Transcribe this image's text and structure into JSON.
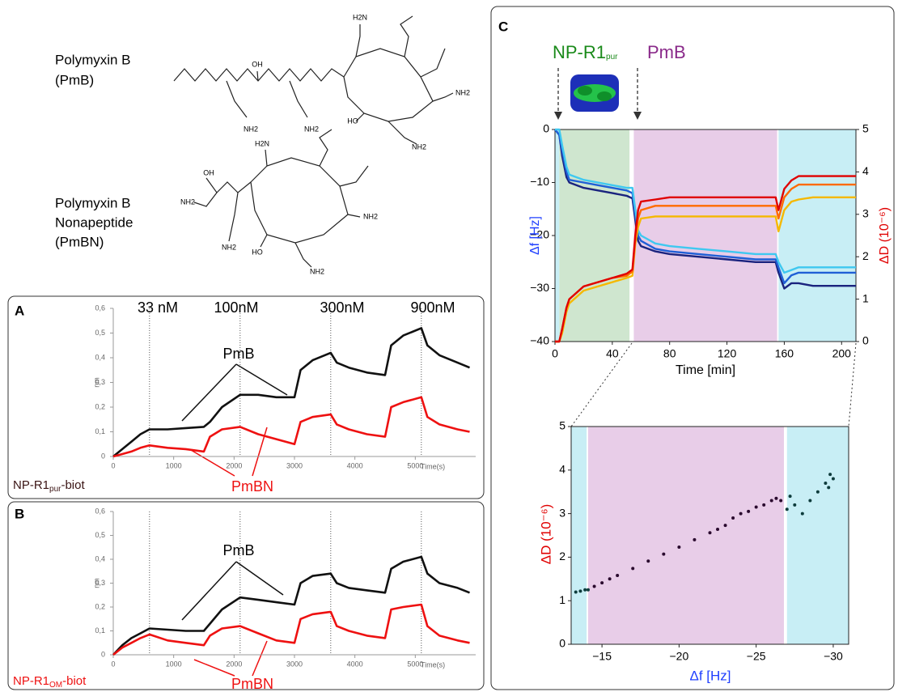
{
  "structures": [
    {
      "name": [
        "Polymyxin B",
        "(PmB)"
      ],
      "atoms": [
        "H2N",
        "OH",
        "NH2",
        "NH2",
        "HO",
        "NH2",
        "NH2"
      ]
    },
    {
      "name": [
        "Polymyxin B",
        "Nonapeptide",
        "(PmBN)"
      ],
      "atoms": [
        "H2N",
        "OH",
        "NH2",
        "NH2",
        "NH2",
        "HO",
        "NH2"
      ]
    }
  ],
  "chart_data": [
    {
      "type": "line",
      "label": "A",
      "annotations": [
        "33 nM",
        "100nM",
        "300nM",
        "900nM"
      ],
      "sample": {
        "text": "NP-R1",
        "sub": "pur",
        "after": "-biot"
      },
      "x_label": "Time(s)",
      "y_label": "nm",
      "xlim": [
        0,
        6000
      ],
      "xticks": [
        0,
        1000,
        2000,
        3000,
        4000,
        5000
      ],
      "ylim": [
        0,
        0.6
      ],
      "yticks": [
        0,
        {
          "value": 0.1,
          "label": "0,1"
        },
        {
          "value": 0.2,
          "label": "0,2"
        },
        {
          "value": 0.3,
          "label": "0,3"
        },
        {
          "value": 0.4,
          "label": "0,4"
        },
        {
          "value": 0.5,
          "label": "0,5"
        },
        {
          "value": 0.6,
          "label": "0,6"
        }
      ],
      "markers": [
        600,
        2100,
        3600,
        5100
      ],
      "x": [
        0,
        150,
        300,
        450,
        600,
        900,
        1200,
        1500,
        1600,
        1800,
        2100,
        2400,
        2700,
        3000,
        3100,
        3300,
        3600,
        3700,
        3900,
        4200,
        4500,
        4600,
        4800,
        5100,
        5200,
        5400,
        5700,
        5900
      ],
      "series": [
        {
          "name": "PmB",
          "color": "#111111",
          "values": [
            0,
            0.03,
            0.06,
            0.09,
            0.11,
            0.11,
            0.115,
            0.12,
            0.14,
            0.2,
            0.25,
            0.25,
            0.24,
            0.24,
            0.35,
            0.39,
            0.42,
            0.38,
            0.36,
            0.34,
            0.33,
            0.45,
            0.49,
            0.52,
            0.45,
            0.41,
            0.38,
            0.36
          ]
        },
        {
          "name": "PmBN",
          "color": "#ee1111",
          "values": [
            0,
            0.01,
            0.02,
            0.035,
            0.045,
            0.035,
            0.03,
            0.02,
            0.08,
            0.11,
            0.12,
            0.09,
            0.07,
            0.05,
            0.14,
            0.16,
            0.17,
            0.13,
            0.11,
            0.09,
            0.08,
            0.2,
            0.22,
            0.24,
            0.16,
            0.13,
            0.11,
            0.1
          ]
        }
      ]
    },
    {
      "type": "line",
      "label": "B",
      "sample": {
        "text": "NP-R1",
        "sub": "OM",
        "after": "-biot"
      },
      "x_label": "Time(s)",
      "y_label": "nm",
      "xlim": [
        0,
        6000
      ],
      "xticks": [
        0,
        1000,
        2000,
        3000,
        4000,
        5000
      ],
      "ylim": [
        0,
        0.6
      ],
      "yticks": [
        0,
        {
          "value": 0.1,
          "label": "0,1"
        },
        {
          "value": 0.2,
          "label": "0,2"
        },
        {
          "value": 0.3,
          "label": "0,3"
        },
        {
          "value": 0.4,
          "label": "0,4"
        },
        {
          "value": 0.5,
          "label": "0,5"
        },
        {
          "value": 0.6,
          "label": "0,6"
        }
      ],
      "markers": [
        600,
        2100,
        3600,
        5100
      ],
      "x": [
        0,
        150,
        300,
        450,
        600,
        900,
        1200,
        1500,
        1600,
        1800,
        2100,
        2400,
        2700,
        3000,
        3100,
        3300,
        3600,
        3700,
        3900,
        4200,
        4500,
        4600,
        4800,
        5100,
        5200,
        5400,
        5700,
        5900
      ],
      "series": [
        {
          "name": "PmB",
          "color": "#111111",
          "values": [
            0,
            0.04,
            0.07,
            0.09,
            0.11,
            0.105,
            0.1,
            0.1,
            0.13,
            0.19,
            0.24,
            0.23,
            0.22,
            0.21,
            0.3,
            0.33,
            0.34,
            0.3,
            0.28,
            0.27,
            0.26,
            0.36,
            0.39,
            0.41,
            0.34,
            0.3,
            0.28,
            0.26
          ]
        },
        {
          "name": "PmBN",
          "color": "#ee1111",
          "values": [
            0,
            0.03,
            0.05,
            0.07,
            0.085,
            0.06,
            0.05,
            0.04,
            0.08,
            0.11,
            0.12,
            0.09,
            0.06,
            0.05,
            0.15,
            0.17,
            0.18,
            0.12,
            0.1,
            0.08,
            0.07,
            0.19,
            0.2,
            0.21,
            0.12,
            0.08,
            0.06,
            0.05
          ]
        }
      ]
    },
    {
      "type": "line",
      "label": "C",
      "phase": {
        "np": {
          "text": "NP-R1",
          "sub": "pur"
        },
        "pmb": "PmB"
      },
      "x_label": "Time [min]",
      "y_label": "Δf [Hz]",
      "y2_label": "ΔD (10⁻⁶)",
      "xlim": [
        0,
        210
      ],
      "xticks": [
        0,
        40,
        80,
        120,
        160,
        200
      ],
      "ylim": [
        -40,
        0
      ],
      "yticks": [
        {
          "value": -40,
          "label": "−40"
        },
        {
          "value": -30,
          "label": "−30"
        },
        {
          "value": -20,
          "label": "−20"
        },
        {
          "value": -10,
          "label": "−10"
        },
        0
      ],
      "y2lim": [
        0,
        5
      ],
      "y2ticks": [
        0,
        1,
        2,
        3,
        4,
        5
      ],
      "regions": [
        {
          "start": 0,
          "end": 3,
          "color": "#c8eef5"
        },
        {
          "start": 3,
          "end": 52,
          "color": "#cfe6cf"
        },
        {
          "start": 55,
          "end": 155,
          "color": "#e8cde8"
        },
        {
          "start": 156,
          "end": 210,
          "color": "#c8eef5"
        }
      ],
      "x": [
        0,
        3,
        5,
        8,
        10,
        20,
        30,
        40,
        50,
        54,
        56,
        58,
        60,
        70,
        80,
        100,
        120,
        140,
        150,
        154,
        156,
        160,
        165,
        170,
        180,
        200,
        210
      ],
      "series": [
        {
          "color": "#1a237e",
          "values": [
            0,
            -1,
            -5,
            -9,
            -10,
            -11,
            -11.5,
            -12,
            -12.5,
            -13,
            -17,
            -21,
            -22,
            -23,
            -23.5,
            -24,
            -24.5,
            -25,
            -25,
            -25,
            -27,
            -30,
            -29,
            -29,
            -29.5,
            -29.5,
            -29.5
          ]
        },
        {
          "color": "#1f5fd6",
          "values": [
            0,
            -1,
            -4,
            -8,
            -9.5,
            -10,
            -10.5,
            -11,
            -11.5,
            -12,
            -16,
            -20,
            -21,
            -22.5,
            -23,
            -23.5,
            -24,
            -24.5,
            -24.5,
            -24.5,
            -26,
            -29,
            -27.5,
            -27,
            -27,
            -27,
            -27
          ]
        },
        {
          "color": "#3fc8f0",
          "values": [
            0,
            0,
            -3,
            -7,
            -8.5,
            -9.5,
            -10,
            -10.5,
            -11,
            -11,
            -15,
            -19,
            -20,
            -21.5,
            -22,
            -22.5,
            -23,
            -23.5,
            -23.5,
            -23.5,
            -25,
            -27,
            -26.5,
            -26,
            -26,
            -26,
            -26
          ]
        },
        {
          "color": "#f5b800",
          "axis": "y2",
          "values": [
            0,
            0,
            0.2,
            0.7,
            0.9,
            1.2,
            1.3,
            1.4,
            1.5,
            1.55,
            2.3,
            2.7,
            2.9,
            2.95,
            2.95,
            2.95,
            2.95,
            2.95,
            2.95,
            2.95,
            2.6,
            3.1,
            3.3,
            3.35,
            3.4,
            3.4,
            3.4
          ]
        },
        {
          "color": "#ff6a00",
          "axis": "y2",
          "values": [
            0,
            0,
            0.3,
            0.8,
            1,
            1.3,
            1.4,
            1.5,
            1.55,
            1.65,
            2.4,
            2.9,
            3.1,
            3.2,
            3.2,
            3.2,
            3.2,
            3.2,
            3.2,
            3.2,
            2.9,
            3.4,
            3.6,
            3.7,
            3.7,
            3.7,
            3.7
          ]
        },
        {
          "color": "#e00000",
          "axis": "y2",
          "values": [
            0,
            0,
            0.3,
            0.8,
            1,
            1.3,
            1.4,
            1.5,
            1.6,
            1.7,
            2.5,
            3.1,
            3.3,
            3.35,
            3.4,
            3.4,
            3.4,
            3.4,
            3.4,
            3.4,
            3.1,
            3.6,
            3.8,
            3.9,
            3.9,
            3.9,
            3.9
          ]
        }
      ]
    },
    {
      "type": "scatter",
      "x_label": "Δf [Hz]",
      "y_label": "ΔD (10⁻⁶)",
      "xlim": [
        -13,
        -31
      ],
      "xticks": [
        {
          "value": -15,
          "label": "−15"
        },
        {
          "value": -20,
          "label": "−20"
        },
        {
          "value": -25,
          "label": "−25"
        },
        {
          "value": -30,
          "label": "−30"
        }
      ],
      "ylim": [
        0,
        5
      ],
      "yticks": [
        0,
        1,
        2,
        3,
        4,
        5
      ],
      "regions": [
        {
          "start": -13,
          "end": -14,
          "color": "#c8eef5"
        },
        {
          "start": -14.1,
          "end": -26.8,
          "color": "#e8cde8"
        },
        {
          "start": -27,
          "end": -31,
          "color": "#c8eef5"
        }
      ],
      "series": [
        {
          "color": "#2a0a2e",
          "x": [
            -14.5,
            -15,
            -15.5,
            -16,
            -17,
            -18,
            -19,
            -20,
            -21,
            -22,
            -22.5,
            -23,
            -23.5,
            -24,
            -24.5,
            -25,
            -25.5,
            -26,
            -26.3,
            -26.6
          ],
          "values": [
            1.33,
            1.41,
            1.5,
            1.58,
            1.74,
            1.91,
            2.07,
            2.23,
            2.4,
            2.56,
            2.64,
            2.73,
            2.9,
            3,
            3.05,
            3.15,
            3.2,
            3.3,
            3.35,
            3.3
          ]
        },
        {
          "color": "#0e3c3c",
          "x": [
            -13.3,
            -13.6,
            -13.9,
            -14.1,
            -27,
            -27.2,
            -27.5,
            -28,
            -28.5,
            -29,
            -29.5,
            -29.7,
            -29.8,
            -30
          ],
          "values": [
            1.2,
            1.22,
            1.25,
            1.25,
            3.1,
            3.4,
            3.2,
            3,
            3.3,
            3.5,
            3.7,
            3.6,
            3.9,
            3.8
          ]
        }
      ]
    }
  ]
}
